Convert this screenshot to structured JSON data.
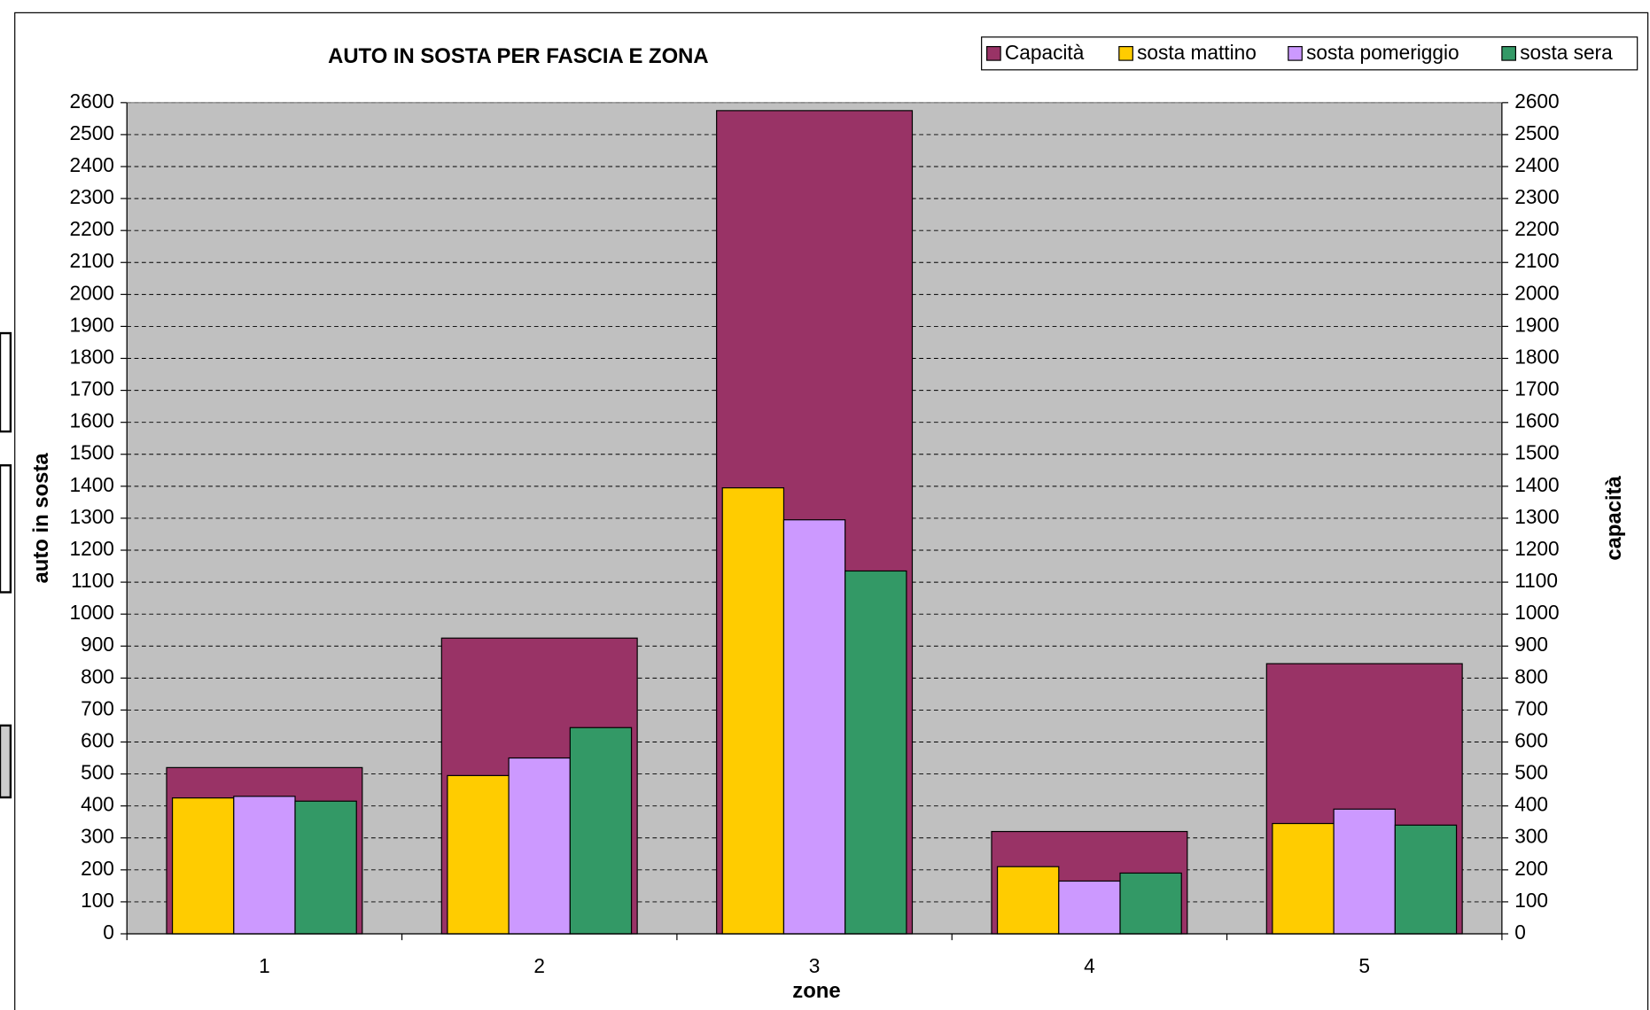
{
  "chart_data": {
    "type": "bar",
    "title": "AUTO IN SOSTA PER FASCIA E ZONA",
    "xlabel": "zone",
    "ylabel": "auto in sosta",
    "y2label": "capacità",
    "categories": [
      "1",
      "2",
      "3",
      "4",
      "5"
    ],
    "series": [
      {
        "name": "Capacità",
        "color": "#993366",
        "axis": "y2",
        "values": [
          520,
          925,
          2575,
          320,
          845
        ]
      },
      {
        "name": "sosta mattino",
        "color": "#ffcc00",
        "values": [
          425,
          495,
          1395,
          210,
          345
        ]
      },
      {
        "name": "sosta pomeriggio",
        "color": "#cc99ff",
        "values": [
          430,
          550,
          1295,
          165,
          390
        ]
      },
      {
        "name": "sosta sera",
        "color": "#339966",
        "values": [
          415,
          645,
          1135,
          190,
          340
        ]
      }
    ],
    "ylim": [
      0,
      2600
    ],
    "yticks": [
      0,
      100,
      200,
      300,
      400,
      500,
      600,
      700,
      800,
      900,
      1000,
      1100,
      1200,
      1300,
      1400,
      1500,
      1600,
      1700,
      1800,
      1900,
      2000,
      2100,
      2200,
      2300,
      2400,
      2500,
      2600
    ],
    "y2lim": [
      0,
      2600
    ],
    "y2ticks": [
      0,
      100,
      200,
      300,
      400,
      500,
      600,
      700,
      800,
      900,
      1000,
      1100,
      1200,
      1300,
      1400,
      1500,
      1600,
      1700,
      1800,
      1900,
      2000,
      2100,
      2200,
      2300,
      2400,
      2500,
      2600
    ],
    "grid": true,
    "legend": "top-right"
  }
}
